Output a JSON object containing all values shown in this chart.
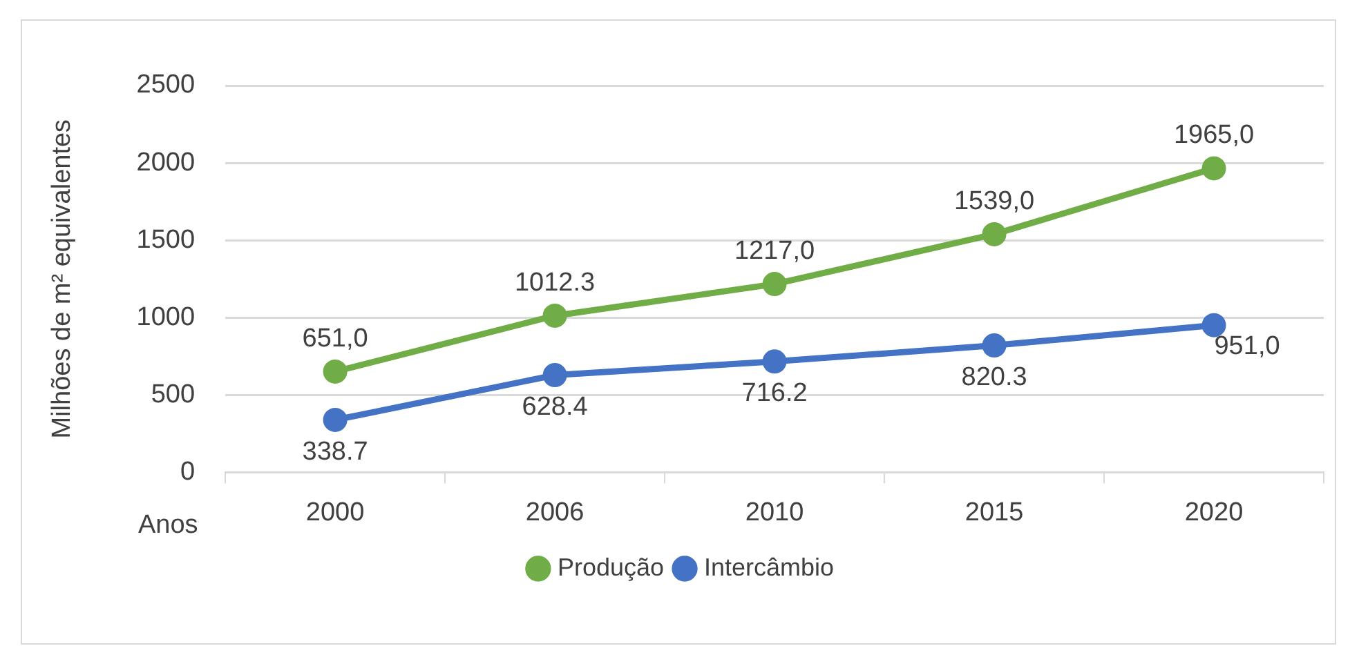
{
  "chart_data": {
    "type": "line",
    "xlabel": "Anos",
    "ylabel": "Milhões de m² equivalentes",
    "categories": [
      "2000",
      "2006",
      "2010",
      "2015",
      "2020"
    ],
    "series": [
      {
        "name": "Produção",
        "color": "#70ad47",
        "values": [
          651,
          1012.3,
          1217,
          1539,
          1965
        ],
        "value_labels": [
          "651,0",
          "1012.3",
          "1217,0",
          "1539,0",
          "1965,0"
        ]
      },
      {
        "name": "Intercâmbio",
        "color": "#4472c4",
        "values": [
          338.7,
          628.4,
          716.2,
          820.3,
          951
        ],
        "value_labels": [
          "338.7",
          "628.4",
          "716.2",
          "820.3",
          "951,0"
        ]
      }
    ],
    "ylim": [
      0,
      2500
    ],
    "yticks": [
      0,
      500,
      1000,
      1500,
      2000,
      2500
    ],
    "grid": "y",
    "legend": "bottom",
    "marker": "circle",
    "line_style": "solid"
  }
}
